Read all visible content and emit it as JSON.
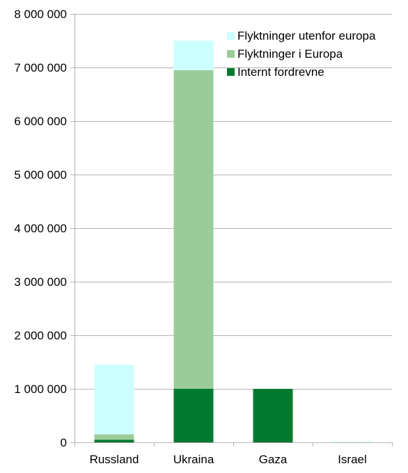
{
  "chart_data": {
    "type": "bar",
    "stacked": true,
    "categories": [
      "Russland",
      "Ukraina",
      "Gaza",
      "Israel"
    ],
    "series": [
      {
        "name": "Internt fordrevne",
        "color": "#007a2e",
        "values": [
          50000,
          1000000,
          1000000,
          0
        ]
      },
      {
        "name": "Flyktninger i Europa",
        "color": "#99cc99",
        "values": [
          100000,
          5950000,
          0,
          0
        ]
      },
      {
        "name": "Flyktninger utenfor europa",
        "color": "#ccffff",
        "values": [
          1300000,
          550000,
          0,
          15000
        ]
      }
    ],
    "ylim": [
      0,
      8000000
    ],
    "yticks": [
      0,
      1000000,
      2000000,
      3000000,
      4000000,
      5000000,
      6000000,
      7000000,
      8000000
    ],
    "ytick_labels": [
      "0",
      "1 000 000",
      "2 000 000",
      "3 000 000",
      "4 000 000",
      "5 000 000",
      "6 000 000",
      "7 000 000",
      "8 000 000"
    ],
    "title": "",
    "xlabel": "",
    "ylabel": "",
    "grid": true,
    "legend": {
      "placement": "top-right",
      "order": [
        "Flyktninger utenfor europa",
        "Flyktninger i Europa",
        "Internt fordrevne"
      ]
    }
  }
}
